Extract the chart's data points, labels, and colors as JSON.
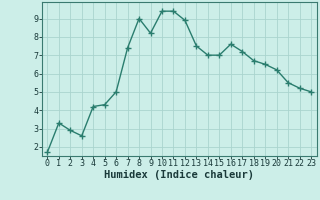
{
  "x": [
    0,
    1,
    2,
    3,
    4,
    5,
    6,
    7,
    8,
    9,
    10,
    11,
    12,
    13,
    14,
    15,
    16,
    17,
    18,
    19,
    20,
    21,
    22,
    23
  ],
  "y": [
    1.7,
    3.3,
    2.9,
    2.6,
    4.2,
    4.3,
    5.0,
    7.4,
    9.0,
    8.2,
    9.4,
    9.4,
    8.9,
    7.5,
    7.0,
    7.0,
    7.6,
    7.2,
    6.7,
    6.5,
    6.2,
    5.5,
    5.2,
    5.0
  ],
  "xlabel": "Humidex (Indice chaleur)",
  "ylim": [
    1.5,
    9.9
  ],
  "xlim": [
    -0.5,
    23.5
  ],
  "line_color": "#2a7d6e",
  "marker": "+",
  "bg_color": "#cceee8",
  "grid_color": "#aad4ce",
  "yticks": [
    2,
    3,
    4,
    5,
    6,
    7,
    8,
    9
  ],
  "xticks": [
    0,
    1,
    2,
    3,
    4,
    5,
    6,
    7,
    8,
    9,
    10,
    11,
    12,
    13,
    14,
    15,
    16,
    17,
    18,
    19,
    20,
    21,
    22,
    23
  ],
  "xtick_labels": [
    "0",
    "1",
    "2",
    "3",
    "4",
    "5",
    "6",
    "7",
    "8",
    "9",
    "10",
    "11",
    "12",
    "13",
    "14",
    "15",
    "16",
    "17",
    "18",
    "19",
    "20",
    "21",
    "22",
    "23"
  ],
  "font_color": "#1a3a3a",
  "linewidth": 1.0,
  "markersize": 4,
  "tick_fontsize": 6.0,
  "xlabel_fontsize": 7.5,
  "axis_color": "#3a7a70"
}
